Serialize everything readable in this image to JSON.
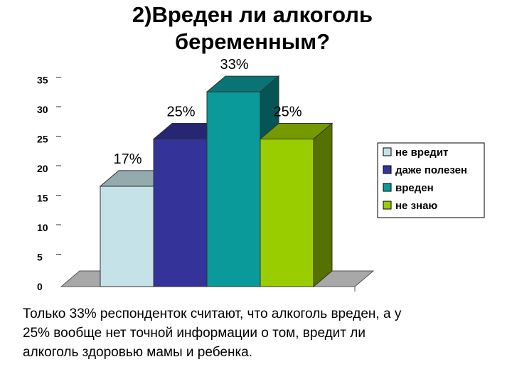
{
  "title": "2)Вреден ли алкоголь\nбеременным?",
  "caption": "Только 33% респонденток считают, что алкоголь вреден, а у\n25% вообще нет точной информации о том, вредит ли\nалкоголь  здоровью мамы и ребенка.",
  "chart_data": {
    "type": "bar",
    "categories": [
      "не вредит",
      "даже полезен",
      "вреден",
      "не знаю"
    ],
    "values": [
      17,
      25,
      33,
      25
    ],
    "data_labels": [
      "17%",
      "25%",
      "33%",
      "25%"
    ],
    "colors": [
      "#c4e2e8",
      "#333399",
      "#0b9a9a",
      "#9acd00"
    ],
    "yticks": [
      "0",
      "5",
      "10",
      "15",
      "20",
      "25",
      "30",
      "35"
    ],
    "ylim": [
      0,
      35
    ],
    "legend": {
      "position": "right",
      "entries": [
        "не вредит",
        "даже полезен",
        "вреден",
        "не знаю"
      ]
    },
    "style": "3d-column",
    "grid": false
  }
}
